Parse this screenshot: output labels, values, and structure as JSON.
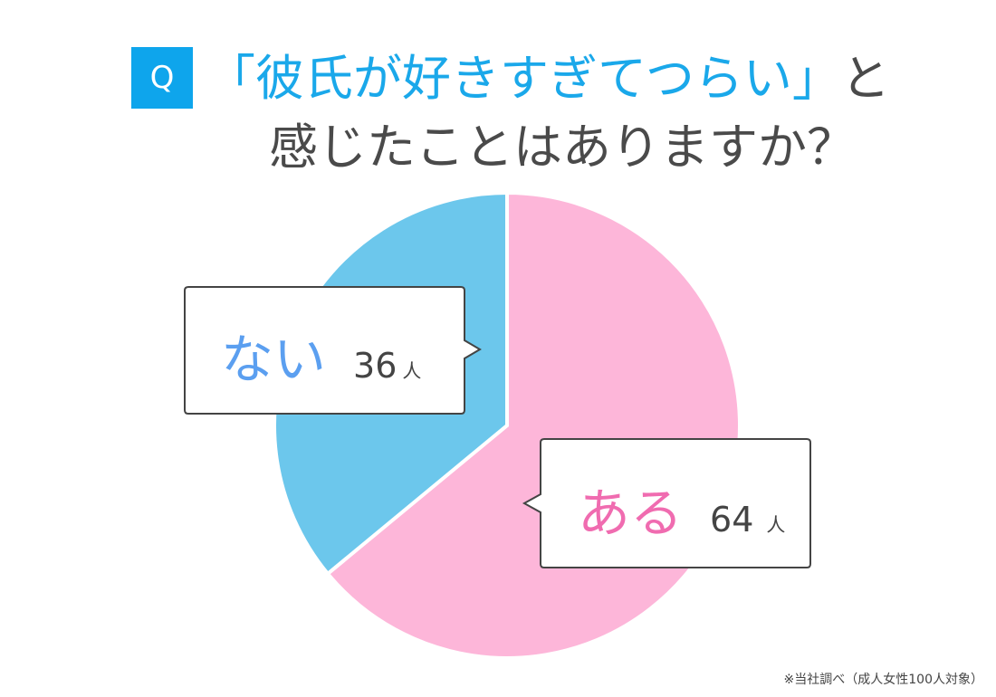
{
  "title": {
    "q_label": "Q",
    "line1_highlight": "「彼氏が好きすぎてつらい」",
    "line1_rest": "と",
    "line2": "感じたことはありますか？"
  },
  "chart_data": {
    "type": "pie",
    "start": "12 o'clock, clockwise",
    "slices": [
      {
        "label": "ある",
        "value": 64,
        "unit": "人",
        "color": "#fdb6d9",
        "label_color": "#f06cb0"
      },
      {
        "label": "ない",
        "value": 36,
        "unit": "人",
        "color": "#6cc7ec",
        "label_color": "#5b9ff0"
      }
    ]
  },
  "footnote": "※当社調べ（成人女性100人対象）"
}
